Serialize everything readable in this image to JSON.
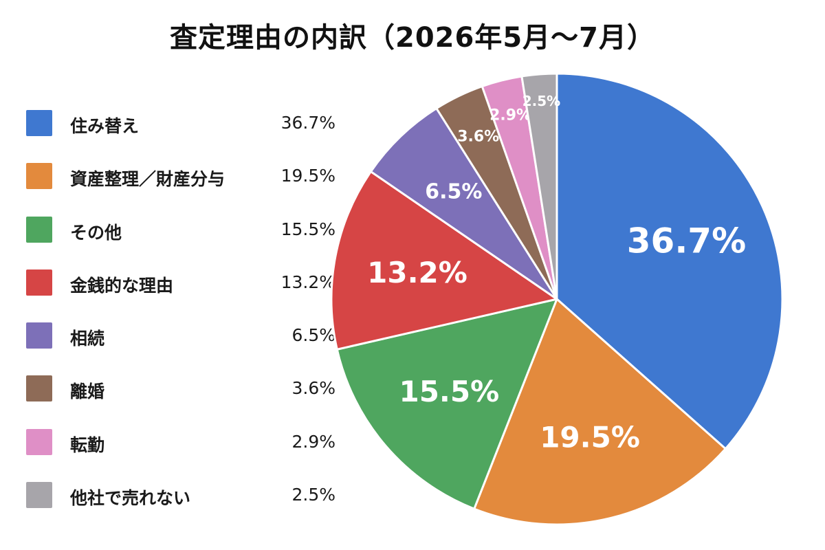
{
  "title": "査定理由の内訳（2026年5月～7月）",
  "chart_data": {
    "type": "pie",
    "title": "査定理由の内訳（2026年5月～7月）",
    "legend_position": "left",
    "slices": [
      {
        "label": "住み替え",
        "value": 36.7,
        "display": "36.7%",
        "color": "#3f78d0"
      },
      {
        "label": "資産整理／財産分与",
        "value": 19.5,
        "display": "19.5%",
        "color": "#e38a3d"
      },
      {
        "label": "その他",
        "value": 15.5,
        "display": "15.5%",
        "color": "#4fa65f"
      },
      {
        "label": "金銭的な理由",
        "value": 13.2,
        "display": "13.2%",
        "color": "#d64545"
      },
      {
        "label": "相続",
        "value": 6.5,
        "display": "6.5%",
        "color": "#7d70b8"
      },
      {
        "label": "離婚",
        "value": 3.6,
        "display": "3.6%",
        "color": "#8e6b57"
      },
      {
        "label": "転勤",
        "value": 2.9,
        "display": "2.9%",
        "color": "#df8fc6"
      },
      {
        "label": "他社で売れない",
        "value": 2.5,
        "display": "2.5%",
        "color": "#a7a5aa"
      }
    ]
  }
}
